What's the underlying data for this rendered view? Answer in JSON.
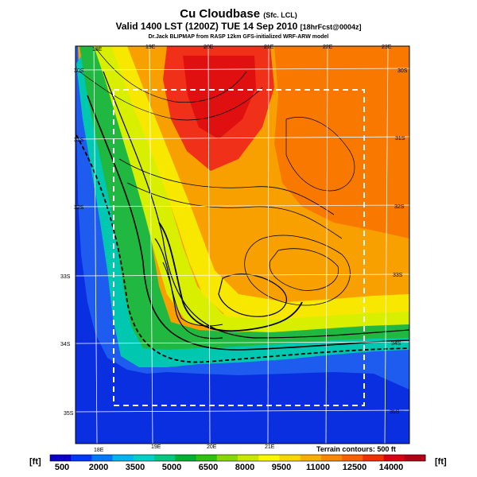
{
  "header": {
    "title": "Cu Cloudbase",
    "title_suffix": "(Sfc. LCL)",
    "valid_line": "Valid 1400 LST (1200Z) TUE 14 Sep 2010",
    "fcst_tag": "[18hrFcst@0004z]",
    "credit": "Dr.Jack BLIPMAP from RASP 12km GFS-initialized WRF-ARW model"
  },
  "map": {
    "lon_labels_top": [
      "18E",
      "19E",
      "20E",
      "21E",
      "22E",
      "23E"
    ],
    "lon_labels_bottom": [
      "18E",
      "19E",
      "20E",
      "21E"
    ],
    "lat_labels_left": [
      "30S",
      "31S",
      "32S",
      "33S",
      "34S",
      "35S"
    ],
    "lat_labels_right": [
      "30S",
      "31S",
      "32S",
      "33S",
      "34S",
      "35S"
    ],
    "terrain_note": "Terrain contours: 500 ft"
  },
  "colorbar": {
    "unit_left": "[ft]",
    "unit_right": "[ft]",
    "tick_labels": [
      "500",
      "2000",
      "3500",
      "5000",
      "6500",
      "8000",
      "9500",
      "11000",
      "12500",
      "14000"
    ],
    "colors": [
      "#0a00c8",
      "#0038f8",
      "#0078f8",
      "#00b4f0",
      "#00d0c8",
      "#00c880",
      "#00b030",
      "#30c010",
      "#88d808",
      "#c8e800",
      "#f8f800",
      "#f8d800",
      "#f8b000",
      "#f88800",
      "#f86000",
      "#f03000",
      "#d80010",
      "#b00018"
    ]
  }
}
